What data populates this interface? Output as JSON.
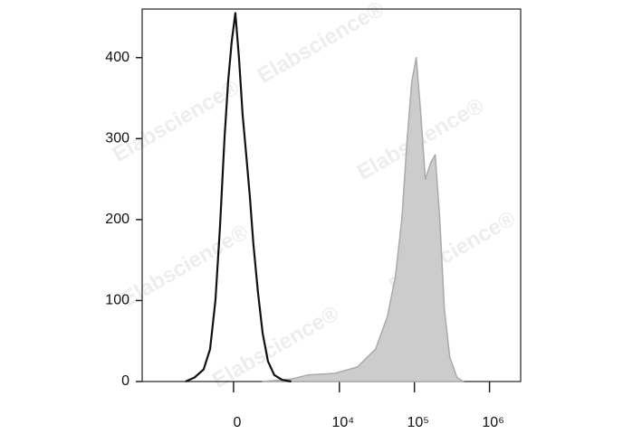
{
  "chart_data": {
    "type": "line",
    "watermark": "Elabscience®",
    "xscale": "asinh",
    "xscale_width": 780,
    "xlim": [
      -6400,
      2600000
    ],
    "xticks": [
      0,
      {
        "value": 10000,
        "label": "10⁴"
      },
      {
        "value": 100000,
        "label": "10⁵"
      },
      {
        "value": 1000000,
        "label": "10⁶"
      }
    ],
    "ylim": [
      0,
      460
    ],
    "yticks": [
      0,
      100,
      200,
      300,
      400
    ],
    "series": [
      {
        "color": "#aaaaaa",
        "fill": "#cccccc",
        "x": [
          790,
          2230,
          3750,
          8700,
          17400,
          30300,
          43600,
          55900,
          67900,
          80200,
          92200,
          105800,
          121600,
          139600,
          164700,
          189300,
          217600,
          250000,
          295600,
          369000,
          448000
        ],
        "values": [
          0,
          3,
          8,
          10,
          18,
          40,
          80,
          130,
          200,
          300,
          370,
          400,
          330,
          250,
          270,
          280,
          200,
          90,
          30,
          5,
          0
        ]
      },
      {
        "color": "#111111",
        "x": [
          -1610,
          -1170,
          -820,
          -610,
          -455,
          -335,
          -220,
          -130,
          -43,
          43,
          130,
          220,
          310,
          405,
          505,
          640,
          790,
          985,
          1250,
          1650,
          2230
        ],
        "values": [
          0,
          5,
          15,
          40,
          100,
          190,
          300,
          370,
          420,
          455,
          400,
          330,
          280,
          230,
          170,
          110,
          60,
          25,
          8,
          2,
          0
        ]
      }
    ]
  }
}
